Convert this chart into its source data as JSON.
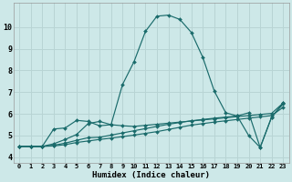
{
  "xlabel": "Humidex (Indice chaleur)",
  "background_color": "#cde8e8",
  "grid_color": "#b8d4d4",
  "line_color": "#1a6b6b",
  "xlim": [
    -0.5,
    23.5
  ],
  "ylim": [
    3.75,
    11.1
  ],
  "xticks": [
    0,
    1,
    2,
    3,
    4,
    5,
    6,
    7,
    8,
    9,
    10,
    11,
    12,
    13,
    14,
    15,
    16,
    17,
    18,
    19,
    20,
    21,
    22,
    23
  ],
  "yticks": [
    4,
    5,
    6,
    7,
    8,
    9,
    10
  ],
  "series1_main": [
    4.5,
    4.5,
    4.5,
    5.3,
    5.35,
    5.7,
    5.65,
    5.45,
    5.5,
    7.35,
    8.4,
    9.8,
    10.5,
    10.55,
    10.35,
    9.75,
    8.6,
    7.05,
    6.05,
    5.9,
    6.05,
    4.45,
    5.85,
    6.5
  ],
  "series2_flat1": [
    4.5,
    4.5,
    4.5,
    4.52,
    4.58,
    4.68,
    4.75,
    4.82,
    4.88,
    4.95,
    5.02,
    5.1,
    5.18,
    5.28,
    5.38,
    5.48,
    5.55,
    5.62,
    5.68,
    5.74,
    5.8,
    5.86,
    5.92,
    6.3
  ],
  "series3_flat2": [
    4.5,
    4.5,
    4.5,
    4.55,
    4.65,
    4.78,
    4.9,
    4.92,
    5.02,
    5.12,
    5.22,
    5.32,
    5.42,
    5.52,
    5.6,
    5.68,
    5.74,
    5.8,
    5.85,
    5.9,
    5.0,
    4.45,
    5.85,
    6.45
  ],
  "series4_mid": [
    4.5,
    4.5,
    4.5,
    4.62,
    4.82,
    5.05,
    5.55,
    5.65,
    5.5,
    5.45,
    5.42,
    5.47,
    5.52,
    5.57,
    5.62,
    5.67,
    5.72,
    5.77,
    5.82,
    5.87,
    5.92,
    5.97,
    6.02,
    6.5
  ]
}
